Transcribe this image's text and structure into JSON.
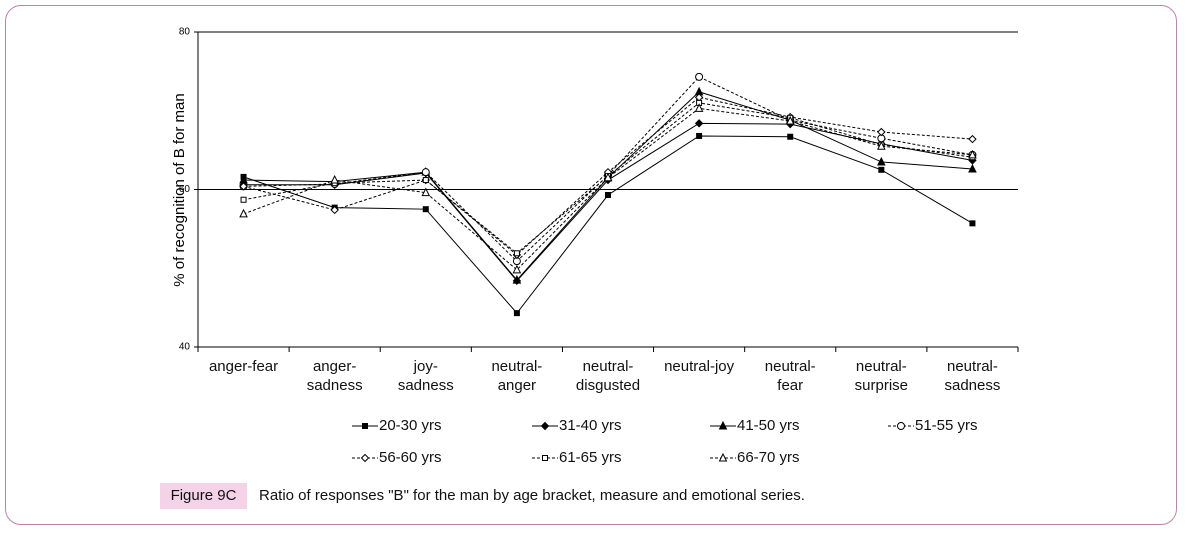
{
  "chart_data": {
    "type": "line",
    "y_label": "% of recognition of B for man",
    "categories": [
      "anger-fear",
      "anger-\nsadness",
      "joy-\nsadness",
      "neutral-\nanger",
      "neutral-\ndisgusted",
      "neutral-joy",
      "neutral-\nfear",
      "neutral-\nsurprise",
      "neutral-\nsadness"
    ],
    "ylim": [
      40,
      80
    ],
    "yticks": [
      40,
      60,
      80
    ],
    "reference_line": 60,
    "series": [
      {
        "name": "20-30 yrs",
        "color": "#000000",
        "line_style": "solid",
        "marker": "square",
        "marker_fill": "filled",
        "values": [
          61.6,
          57.7,
          57.5,
          44.3,
          59.3,
          66.8,
          66.7,
          62.5,
          55.7
        ]
      },
      {
        "name": "31-40 yrs",
        "color": "#000000",
        "line_style": "solid",
        "marker": "diamond",
        "marker_fill": "filled",
        "values": [
          60.6,
          60.6,
          62.1,
          48.4,
          61.2,
          68.4,
          68.3,
          65.8,
          63.7
        ]
      },
      {
        "name": "41-50 yrs",
        "color": "#000000",
        "line_style": "solid",
        "marker": "triangle",
        "marker_fill": "filled",
        "values": [
          61.2,
          61.0,
          62.2,
          48.5,
          61.5,
          72.4,
          68.8,
          63.5,
          62.6
        ]
      },
      {
        "name": "51-55 yrs",
        "color": "#000000",
        "line_style": "dashed",
        "marker": "circle",
        "marker_fill": "open",
        "values": [
          60.4,
          60.7,
          62.2,
          50.9,
          61.8,
          74.3,
          68.8,
          66.5,
          64.4
        ]
      },
      {
        "name": "56-60 yrs",
        "color": "#000000",
        "line_style": "dashed",
        "marker": "diamond",
        "marker_fill": "open",
        "values": [
          60.4,
          57.4,
          61.2,
          51.7,
          62.2,
          71.7,
          69.2,
          67.3,
          66.4
        ]
      },
      {
        "name": "61-65 yrs",
        "color": "#000000",
        "line_style": "dashed",
        "marker": "square",
        "marker_fill": "open",
        "values": [
          58.7,
          60.8,
          61.2,
          51.9,
          61.7,
          71.0,
          69.1,
          65.7,
          64.1
        ]
      },
      {
        "name": "66-70 yrs",
        "color": "#000000",
        "line_style": "dashed",
        "marker": "triangle",
        "marker_fill": "open",
        "values": [
          56.9,
          61.2,
          59.6,
          49.8,
          61.5,
          70.3,
          68.7,
          65.5,
          64.4
        ]
      }
    ]
  },
  "caption": {
    "label": "Figure 9C",
    "text": "Ratio of responses \"B\" for the man by age bracket, measure and emotional series."
  }
}
